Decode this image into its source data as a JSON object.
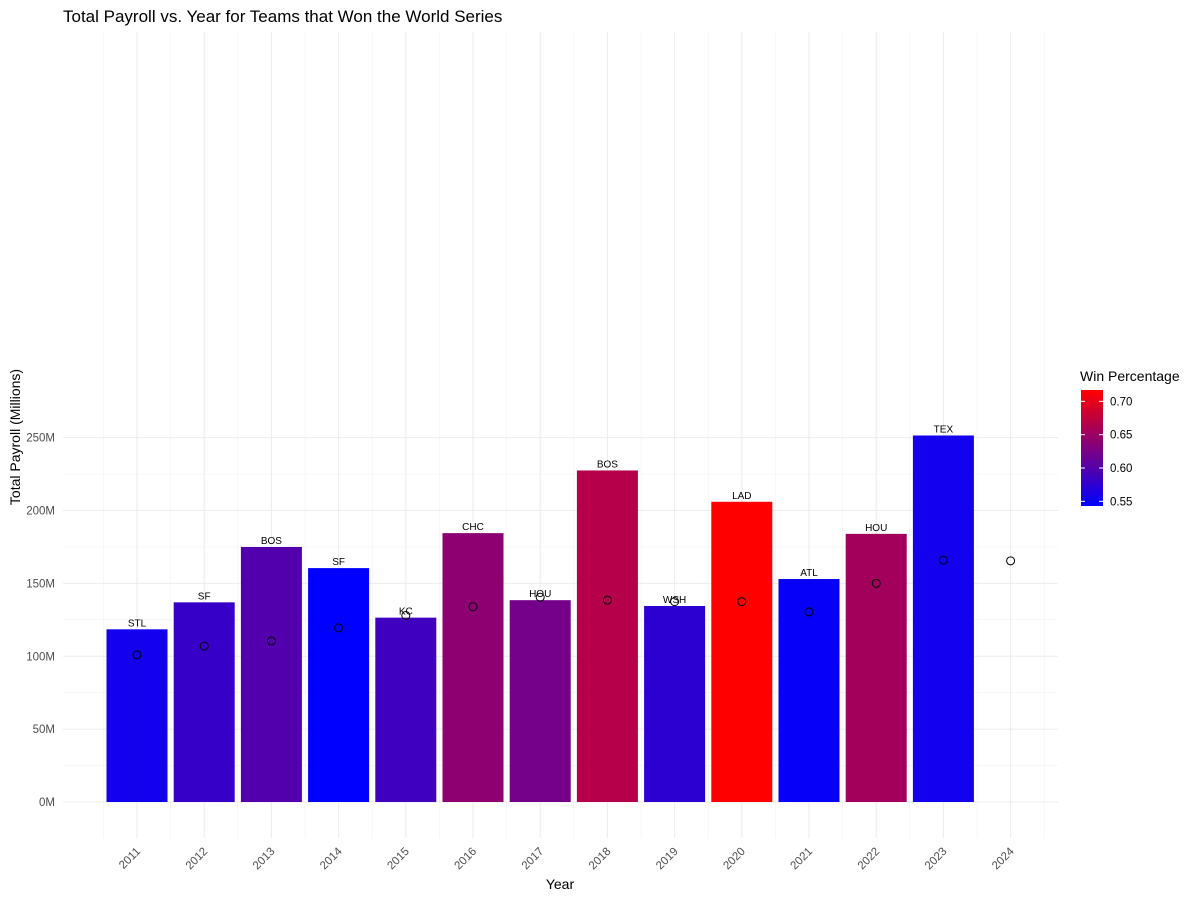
{
  "chart_data": {
    "type": "bar",
    "title": "Total Payroll vs. Year for Teams that Won the World Series",
    "xlabel": "Year",
    "ylabel": "Total Payroll (Millions)",
    "ylim": [
      0,
      260
    ],
    "y_ticks": [
      0,
      50,
      100,
      150,
      200,
      250
    ],
    "y_tick_labels": [
      "0M",
      "50M",
      "100M",
      "150M",
      "200M",
      "250M"
    ],
    "categories": [
      "2011",
      "2012",
      "2013",
      "2014",
      "2015",
      "2016",
      "2017",
      "2018",
      "2019",
      "2020",
      "2021",
      "2022",
      "2023",
      "2024"
    ],
    "series": [
      {
        "kind": "bar",
        "values": [
          118.5,
          137,
          175,
          160.5,
          126.5,
          184.5,
          138.5,
          227.5,
          134.5,
          206,
          153,
          184,
          251.5,
          null
        ],
        "team_labels": [
          "STL",
          "SF",
          "BOS",
          "SF",
          "KC",
          "CHC",
          "HOU",
          "BOS",
          "WSH",
          "LAD",
          "ATL",
          "HOU",
          "TEX",
          ""
        ],
        "win_percentage": [
          0.556,
          0.58,
          0.599,
          0.543,
          0.586,
          0.64,
          0.623,
          0.667,
          0.574,
          0.717,
          0.547,
          0.654,
          0.556,
          null
        ]
      },
      {
        "kind": "point",
        "values": [
          101,
          107,
          110.5,
          119.5,
          128,
          134,
          140.5,
          138.5,
          137.5,
          137.5,
          130.5,
          150,
          166,
          165.5
        ]
      }
    ],
    "legend": {
      "title": "Win Percentage",
      "position": "right",
      "breaks": [
        0.55,
        0.6,
        0.65,
        0.7
      ],
      "break_labels": [
        "0.55",
        "0.60",
        "0.65",
        "0.70"
      ],
      "range": [
        0.543,
        0.717
      ],
      "low_color": "#0000ff",
      "high_color": "#ff0000"
    },
    "grid": true
  }
}
